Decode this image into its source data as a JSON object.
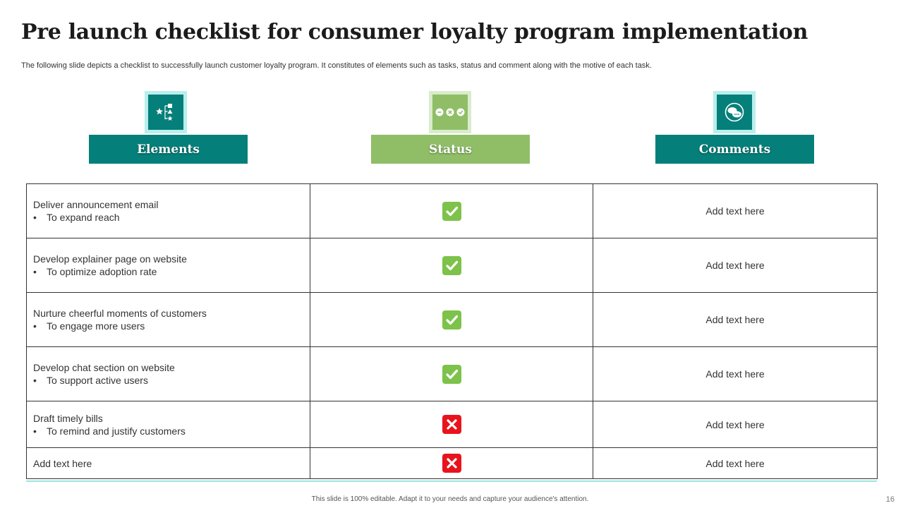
{
  "slide": {
    "title": "Pre launch checklist for consumer loyalty program implementation",
    "subtitle": "The following slide depicts a checklist to successfully launch customer loyalty program. It constitutes of elements such as tasks, status and comment along with the motive of each task.",
    "footer": "This slide is 100% editable. Adapt it to your needs and capture your audience's attention.",
    "page_number": "16"
  },
  "headers": [
    {
      "label": "Elements",
      "icon": "shapes-hierarchy-icon",
      "color": "#057f7a"
    },
    {
      "label": "Status",
      "icon": "status-dots-icon",
      "color": "#8fbe67"
    },
    {
      "label": "Comments",
      "icon": "chat-bubbles-icon",
      "color": "#057f7a"
    }
  ],
  "colors": {
    "teal": "#057f7a",
    "green": "#8fbe67",
    "check": "#7dc24a",
    "cross": "#e8141c"
  },
  "rows": [
    {
      "task": "Deliver announcement email",
      "motive": "To expand reach",
      "bullet": "•",
      "status": "done",
      "comment": "Add text here"
    },
    {
      "task": "Develop explainer page on website",
      "motive": "To optimize adoption rate",
      "bullet": "•",
      "status": "done",
      "comment": "Add text here"
    },
    {
      "task": "Nurture cheerful moments of customers",
      "motive": "To engage more users",
      "bullet": "•",
      "status": "done",
      "comment": "Add text here"
    },
    {
      "task": "Develop chat section on website",
      "motive": "To support active users",
      "bullet": "•",
      "status": "done",
      "comment": "Add text here"
    },
    {
      "task": "Draft timely bills",
      "motive": "To remind and justify customers",
      "bullet": "•",
      "status": "not-done",
      "comment": "Add text here"
    },
    {
      "task": "Add text here",
      "status": "not-done",
      "comment": "Add text here"
    }
  ]
}
